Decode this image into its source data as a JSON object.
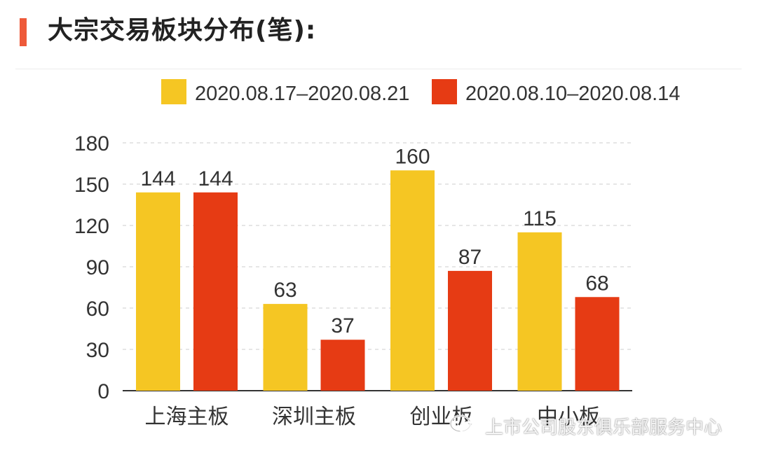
{
  "header": {
    "title": "大宗交易板块分布(笔):"
  },
  "watermark": {
    "text": "上市公司股东俱乐部服务中心",
    "icon": "wechat-icon"
  },
  "colors": {
    "series1": "#f5c623",
    "series2": "#e63b14",
    "accent": "#ee5a3a",
    "grid": "#dddddd",
    "text": "#333333"
  },
  "chart_data": {
    "type": "bar",
    "title": "大宗交易板块分布(笔):",
    "categories": [
      "上海主板",
      "深圳主板",
      "创业板",
      "中小板"
    ],
    "series": [
      {
        "name": "2020.08.17–2020.08.21",
        "values": [
          144,
          63,
          160,
          115
        ]
      },
      {
        "name": "2020.08.10–2020.08.14",
        "values": [
          144,
          37,
          87,
          68
        ]
      }
    ],
    "yticks": [
      0,
      30,
      60,
      90,
      120,
      150,
      180
    ],
    "ylim": [
      0,
      180
    ],
    "xlabel": "",
    "ylabel": "",
    "grid": true,
    "legend": "top"
  }
}
